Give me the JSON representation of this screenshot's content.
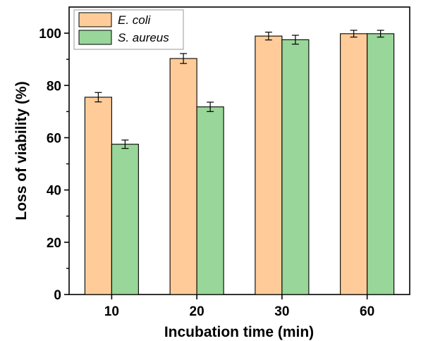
{
  "chart_data": {
    "type": "bar",
    "categories": [
      "10",
      "20",
      "30",
      "60"
    ],
    "series": [
      {
        "name": "E. coli",
        "color": "#FFCC99",
        "values": [
          75.5,
          90.3,
          98.9,
          99.8
        ],
        "errors": [
          1.8,
          1.9,
          1.5,
          1.3
        ]
      },
      {
        "name": "S. aureus",
        "color": "#99D699",
        "values": [
          57.5,
          71.8,
          97.5,
          99.8
        ],
        "errors": [
          1.6,
          1.8,
          1.7,
          1.3
        ]
      }
    ],
    "xlabel": "Incubation time (min)",
    "ylabel": "Loss of viability (%)",
    "ylim": [
      0,
      110
    ],
    "yticks": [
      0,
      20,
      40,
      60,
      80,
      100
    ],
    "grid": false,
    "legend_position": "top-left"
  }
}
